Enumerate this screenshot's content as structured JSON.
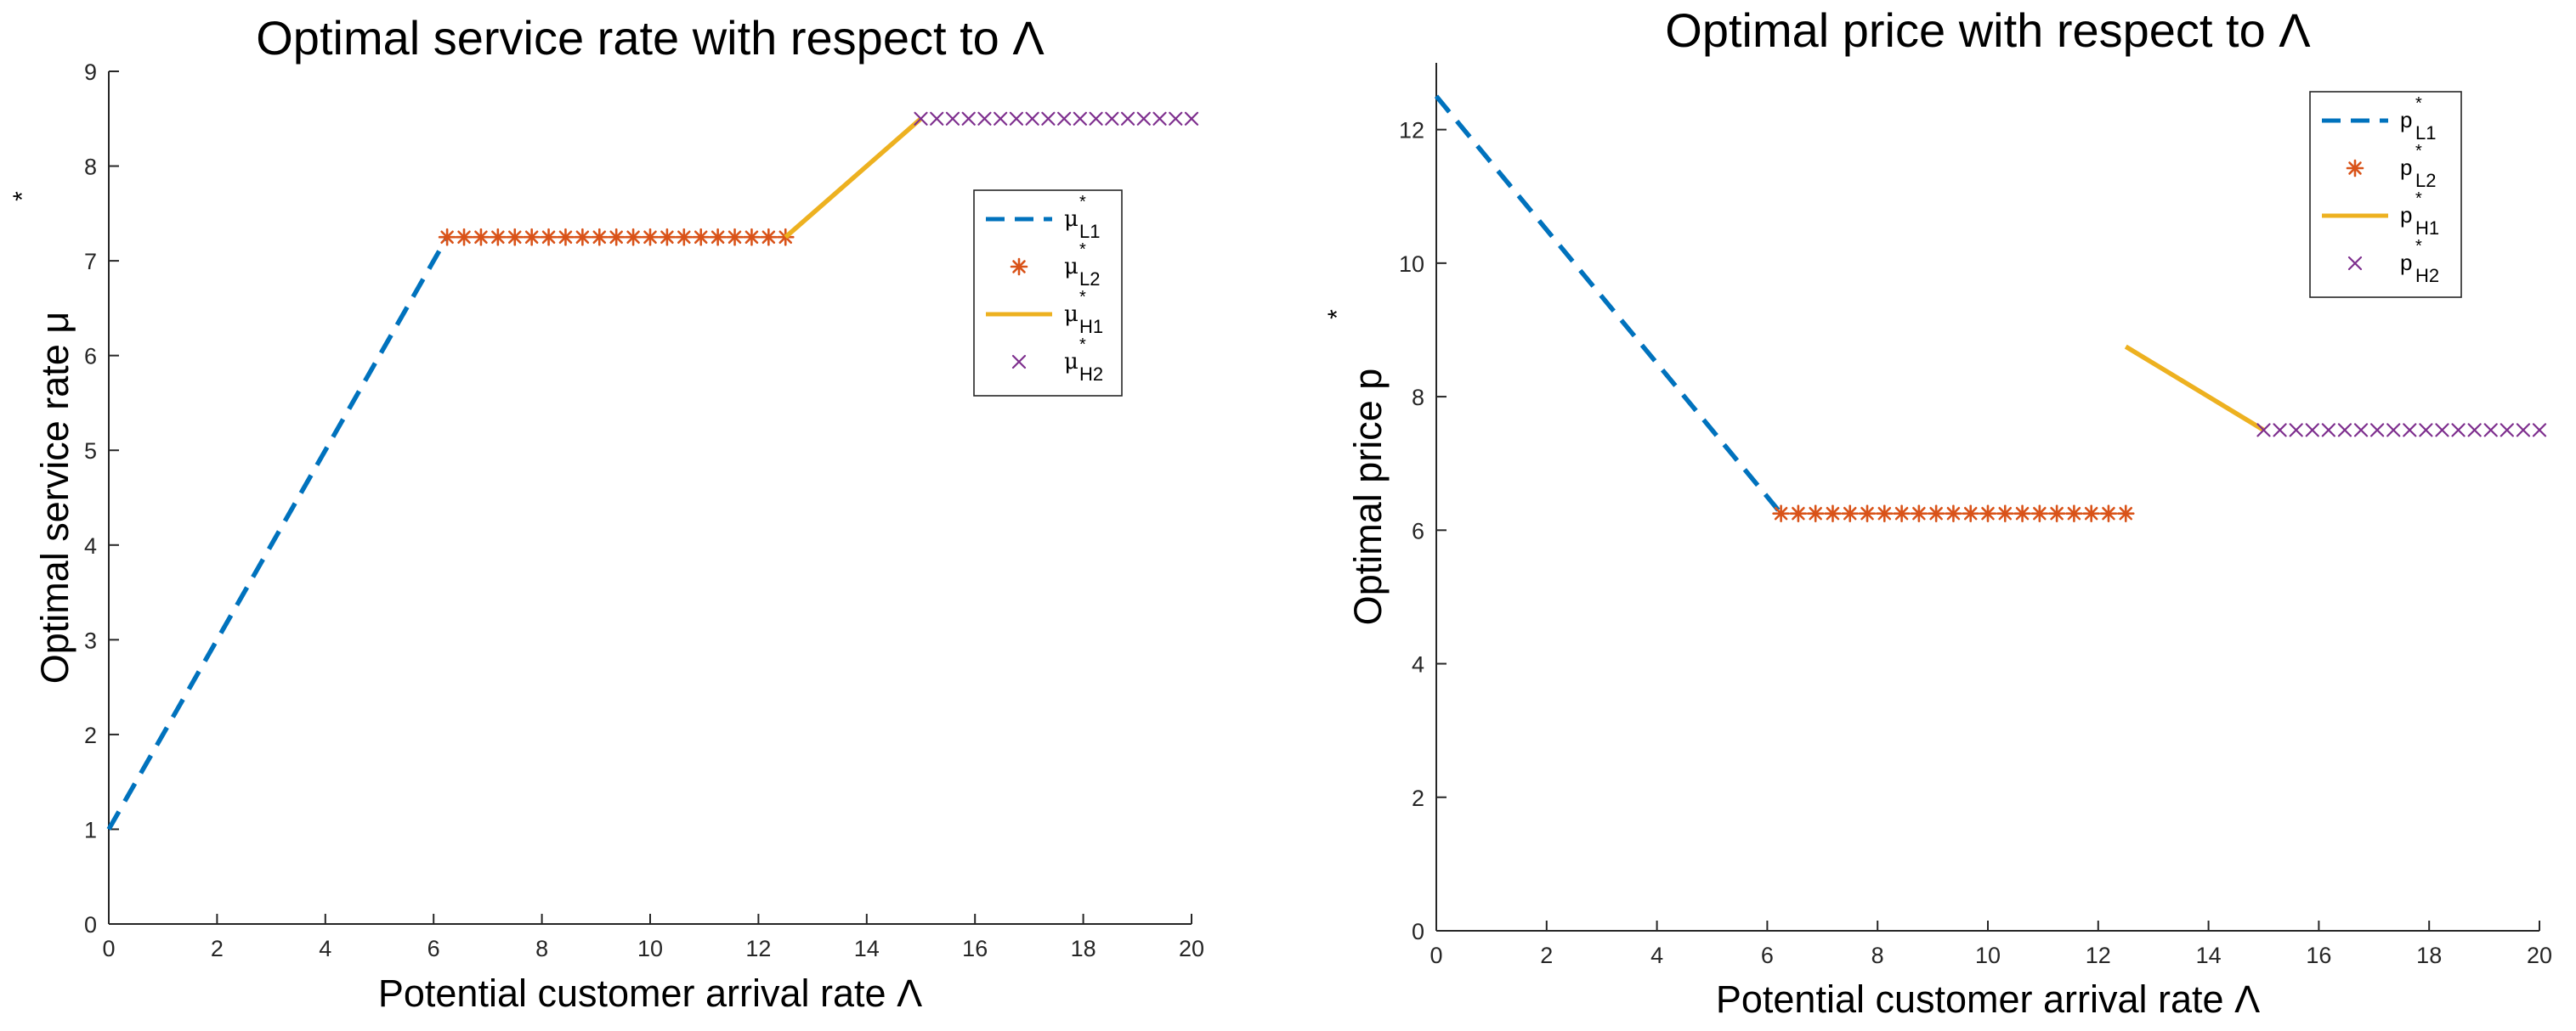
{
  "chart_data": [
    {
      "type": "line",
      "title": "Optimal service rate with respect to Λ",
      "xlabel": "Potential customer arrival rate Λ",
      "ylabel": "Optimal service rate μ",
      "ylabel_sup": "*",
      "xlim": [
        0,
        20
      ],
      "ylim": [
        0,
        9
      ],
      "xticks": [
        0,
        2,
        4,
        6,
        8,
        10,
        12,
        14,
        16,
        18,
        20
      ],
      "yticks": [
        0,
        1,
        2,
        3,
        4,
        5,
        6,
        7,
        8,
        9
      ],
      "legend_position": "right",
      "series": [
        {
          "name": "μ*L1",
          "sym": "μ",
          "sub": "L1",
          "sup": "*",
          "style": "dashed",
          "color": "#0072BD",
          "x": [
            0,
            6.25
          ],
          "y": [
            1,
            7.25
          ]
        },
        {
          "name": "μ*L2",
          "sym": "μ",
          "sub": "L2",
          "sup": "*",
          "style": "asterisk",
          "color": "#D95319",
          "x_range": [
            6.25,
            12.5
          ],
          "count": 21,
          "y_const": 7.25
        },
        {
          "name": "μ*H1",
          "sym": "μ",
          "sub": "H1",
          "sup": "*",
          "style": "solid",
          "color": "#EDB120",
          "x": [
            12.5,
            15
          ],
          "y": [
            7.25,
            8.5
          ]
        },
        {
          "name": "μ*H2",
          "sym": "μ",
          "sub": "H2",
          "sup": "*",
          "style": "cross",
          "color": "#7E2F8E",
          "x_range": [
            15,
            20
          ],
          "count": 18,
          "y_const": 8.5
        }
      ]
    },
    {
      "type": "line",
      "title": "Optimal price with respect to Λ",
      "xlabel": "Potential customer arrival rate Λ",
      "ylabel": "Optimal price p",
      "ylabel_sup": "*",
      "xlim": [
        0,
        20
      ],
      "ylim": [
        0,
        13
      ],
      "xticks": [
        0,
        2,
        4,
        6,
        8,
        10,
        12,
        14,
        16,
        18,
        20
      ],
      "yticks": [
        0,
        2,
        4,
        6,
        8,
        10,
        12
      ],
      "legend_position": "top-right",
      "series": [
        {
          "name": "p*L1",
          "sym": "p",
          "sub": "L1",
          "sup": "*",
          "style": "dashed",
          "color": "#0072BD",
          "x": [
            0,
            6.25
          ],
          "y": [
            12.5,
            6.25
          ]
        },
        {
          "name": "p*L2",
          "sym": "p",
          "sub": "L2",
          "sup": "*",
          "style": "asterisk",
          "color": "#D95319",
          "x_range": [
            6.25,
            12.5
          ],
          "count": 21,
          "y_const": 6.25
        },
        {
          "name": "p*H1",
          "sym": "p",
          "sub": "H1",
          "sup": "*",
          "style": "solid",
          "color": "#EDB120",
          "x": [
            12.5,
            15
          ],
          "y": [
            8.75,
            7.5
          ]
        },
        {
          "name": "p*H2",
          "sym": "p",
          "sub": "H2",
          "sup": "*",
          "style": "cross",
          "color": "#7E2F8E",
          "x_range": [
            15,
            20
          ],
          "count": 18,
          "y_const": 7.5
        }
      ]
    }
  ]
}
